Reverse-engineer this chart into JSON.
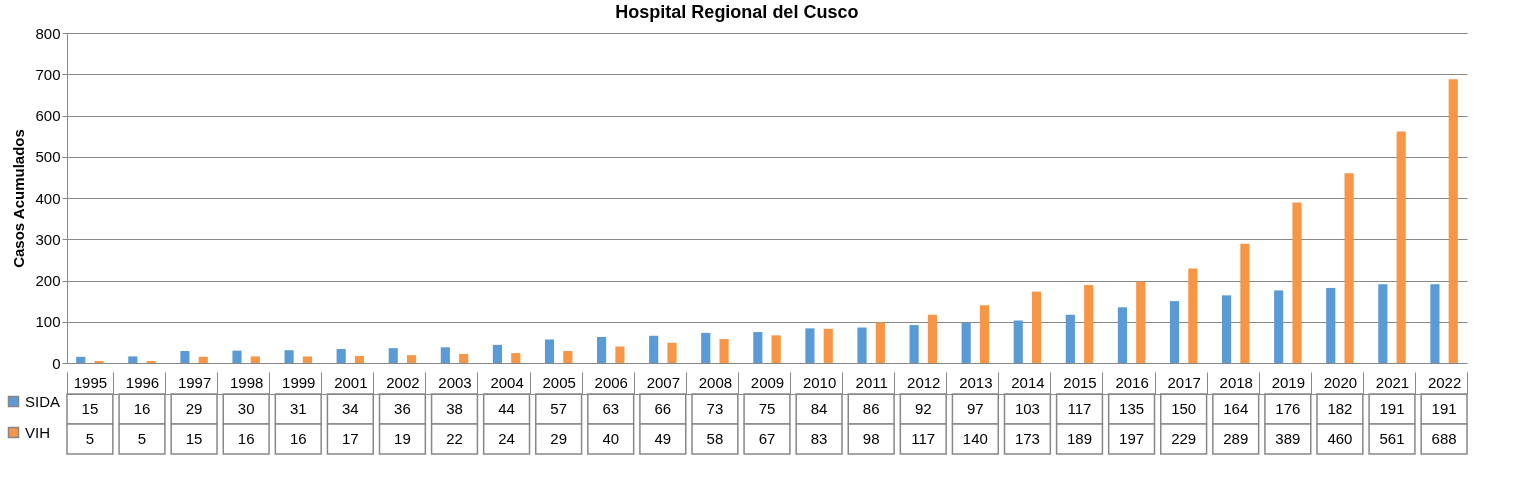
{
  "chart_data": {
    "type": "bar",
    "title": "Hospital Regional del Cusco",
    "ylabel": "Casos Acumulados",
    "categories": [
      "1995",
      "1996",
      "1997",
      "1998",
      "1999",
      "2001",
      "2002",
      "2003",
      "2004",
      "2005",
      "2006",
      "2007",
      "2008",
      "2009",
      "2010",
      "2011",
      "2012",
      "2013",
      "2014",
      "2015",
      "2016",
      "2017",
      "2018",
      "2019",
      "2020",
      "2021",
      "2022"
    ],
    "series": [
      {
        "name": "SIDA",
        "color": "#5b9bd5",
        "values": [
          15,
          16,
          29,
          30,
          31,
          34,
          36,
          38,
          44,
          57,
          63,
          66,
          73,
          75,
          84,
          86,
          92,
          97,
          103,
          117,
          135,
          150,
          164,
          176,
          182,
          191,
          191
        ]
      },
      {
        "name": "VIH",
        "color": "#f79646",
        "values": [
          5,
          5,
          15,
          16,
          16,
          17,
          19,
          22,
          24,
          29,
          40,
          49,
          58,
          67,
          83,
          98,
          117,
          140,
          173,
          189,
          197,
          229,
          289,
          389,
          460,
          561,
          688
        ]
      }
    ],
    "ylim": [
      0,
      800
    ],
    "yticks": [
      0,
      100,
      200,
      300,
      400,
      500,
      600,
      700,
      800
    ],
    "grid": "y",
    "legend": "bottom",
    "data_labels": true
  }
}
